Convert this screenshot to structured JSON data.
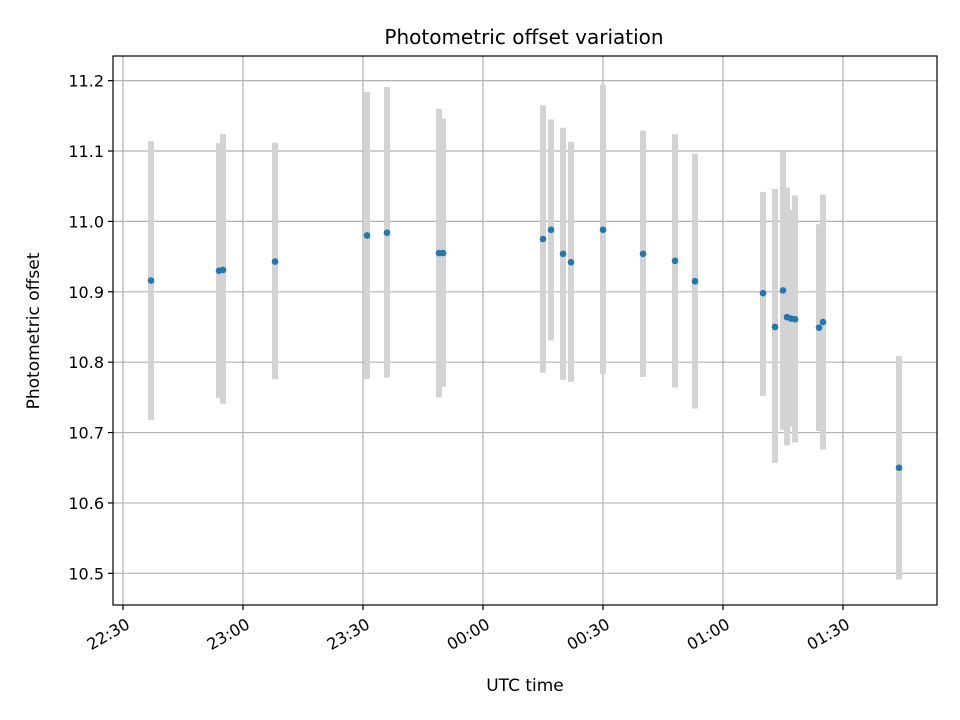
{
  "chart_data": {
    "type": "scatter",
    "title": "Photometric offset variation",
    "xlabel": "UTC time",
    "ylabel": "Photometric offset",
    "x_axis": {
      "kind": "time",
      "range": [
        "22:27:30",
        "01:53:30"
      ],
      "ticks": [
        "22:30",
        "23:00",
        "23:30",
        "00:00",
        "00:30",
        "01:00",
        "01:30"
      ]
    },
    "y_axis": {
      "range": [
        10.455,
        11.235
      ],
      "ticks": [
        "10.5",
        "10.6",
        "10.7",
        "10.8",
        "10.9",
        "11.0",
        "11.1",
        "11.2"
      ]
    },
    "grid": true,
    "colors": {
      "points": "#1f77b4",
      "errorbars": "#d3d3d3",
      "grid": "#b0b0b0"
    },
    "points": [
      {
        "t": "22:37",
        "y": 10.916,
        "lo": 10.718,
        "hi": 11.114
      },
      {
        "t": "22:54",
        "y": 10.93,
        "lo": 10.749,
        "hi": 11.111
      },
      {
        "t": "22:55",
        "y": 10.931,
        "lo": 10.741,
        "hi": 11.124
      },
      {
        "t": "23:08",
        "y": 10.943,
        "lo": 10.776,
        "hi": 11.112
      },
      {
        "t": "23:31",
        "y": 10.98,
        "lo": 10.776,
        "hi": 11.184
      },
      {
        "t": "23:36",
        "y": 10.984,
        "lo": 10.778,
        "hi": 11.191
      },
      {
        "t": "23:49",
        "y": 10.955,
        "lo": 10.75,
        "hi": 11.16
      },
      {
        "t": "23:50",
        "y": 10.955,
        "lo": 10.765,
        "hi": 11.146
      },
      {
        "t": "00:15",
        "y": 10.975,
        "lo": 10.785,
        "hi": 11.165
      },
      {
        "t": "00:17",
        "y": 10.988,
        "lo": 10.831,
        "hi": 11.145
      },
      {
        "t": "00:20",
        "y": 10.954,
        "lo": 10.775,
        "hi": 11.133
      },
      {
        "t": "00:22",
        "y": 10.942,
        "lo": 10.772,
        "hi": 11.113
      },
      {
        "t": "00:30",
        "y": 10.988,
        "lo": 10.783,
        "hi": 11.194
      },
      {
        "t": "00:40",
        "y": 10.954,
        "lo": 10.779,
        "hi": 11.129
      },
      {
        "t": "00:48",
        "y": 10.944,
        "lo": 10.764,
        "hi": 11.124
      },
      {
        "t": "00:53",
        "y": 10.915,
        "lo": 10.734,
        "hi": 11.096
      },
      {
        "t": "01:10",
        "y": 10.898,
        "lo": 10.752,
        "hi": 11.042
      },
      {
        "t": "01:13",
        "y": 10.85,
        "lo": 10.657,
        "hi": 11.046
      },
      {
        "t": "01:15",
        "y": 10.902,
        "lo": 10.704,
        "hi": 11.099
      },
      {
        "t": "01:16",
        "y": 10.864,
        "lo": 10.682,
        "hi": 11.048
      },
      {
        "t": "01:17",
        "y": 10.862,
        "lo": 10.709,
        "hi": 11.016
      },
      {
        "t": "01:18",
        "y": 10.861,
        "lo": 10.686,
        "hi": 11.037
      },
      {
        "t": "01:24",
        "y": 10.849,
        "lo": 10.702,
        "hi": 10.996
      },
      {
        "t": "01:25",
        "y": 10.857,
        "lo": 10.676,
        "hi": 11.038
      },
      {
        "t": "01:44",
        "y": 10.65,
        "lo": 10.491,
        "hi": 10.809
      }
    ]
  }
}
